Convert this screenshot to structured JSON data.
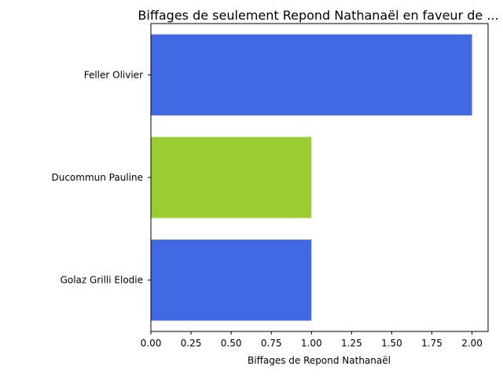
{
  "chart_data": {
    "type": "bar",
    "orientation": "horizontal",
    "title": "Biffages de seulement Repond Nathanaël en faveur de ...",
    "xlabel": "Biffages de Repond Nathanaël",
    "ylabel": "",
    "categories": [
      "Feller Olivier",
      "Ducommun Pauline",
      "Golaz Grilli Elodie"
    ],
    "values": [
      2,
      1,
      1
    ],
    "colors": [
      "#4169e1",
      "#9acd32",
      "#4169e1"
    ],
    "xlim": [
      0,
      2.1
    ],
    "xticks": [
      "0.00",
      "0.25",
      "0.50",
      "0.75",
      "1.00",
      "1.25",
      "1.50",
      "1.75",
      "2.00"
    ],
    "grid": false,
    "legend": "none"
  }
}
